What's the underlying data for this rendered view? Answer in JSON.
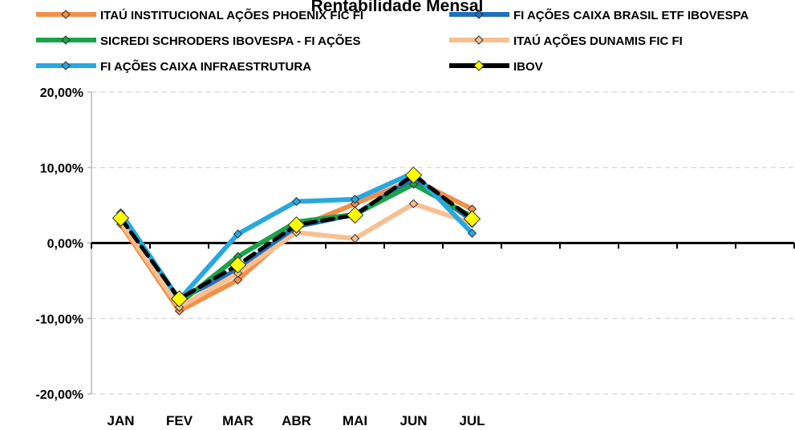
{
  "chart_data": {
    "type": "line",
    "title": "Rentabilidade Mensal",
    "categories": [
      "JAN",
      "FEV",
      "MAR",
      "ABR",
      "MAI",
      "JUN",
      "JUL",
      null,
      null,
      null,
      null,
      null
    ],
    "series": [
      {
        "name": "ITAÚ INSTITUCIONAL AÇÕES PHOENIX FIC FI",
        "color": "#f0904a",
        "values": [
          2.5,
          -9.0,
          -4.9,
          2.0,
          5.2,
          8.4,
          4.5,
          null,
          null,
          null,
          null,
          null
        ]
      },
      {
        "name": "FI AÇÕES CAIXA BRASIL ETF IBOVESPA",
        "color": "#1f6fbf",
        "values": [
          3.7,
          -7.5,
          -3.5,
          2.2,
          3.8,
          8.5,
          3.0,
          null,
          null,
          null,
          null,
          null
        ]
      },
      {
        "name": "SICREDI SCHRODERS IBOVESPA - FI AÇÕES",
        "color": "#1aa34a",
        "values": [
          3.5,
          -8.0,
          -1.8,
          2.8,
          3.8,
          7.8,
          3.5,
          null,
          null,
          null,
          null,
          null
        ]
      },
      {
        "name": "ITAÚ AÇÕES DUNAMIS FIC FI",
        "color": "#f8c090",
        "values": [
          2.8,
          -8.5,
          -4.0,
          1.4,
          0.6,
          5.2,
          2.6,
          null,
          null,
          null,
          null,
          null
        ]
      },
      {
        "name": "FI AÇÕES CAIXA INFRAESTRUTURA",
        "color": "#29a8e0",
        "values": [
          4.0,
          -7.5,
          1.2,
          5.5,
          5.8,
          9.3,
          1.3,
          null,
          null,
          null,
          null,
          null
        ]
      },
      {
        "name": "IBOV",
        "color": "#000000",
        "marker_color": "#ffff00",
        "values": [
          3.3,
          -7.4,
          -2.9,
          2.4,
          3.7,
          9.0,
          3.2,
          null,
          null,
          null,
          null,
          null
        ]
      }
    ],
    "ylim": [
      -20,
      20
    ],
    "yticks": [
      {
        "value": -20,
        "label": "-20,00%"
      },
      {
        "value": -10,
        "label": "-10,00%"
      },
      {
        "value": 0,
        "label": "0,00%"
      },
      {
        "value": 10,
        "label": "10,00%"
      },
      {
        "value": 20,
        "label": "20,00%"
      }
    ],
    "grid": true
  }
}
